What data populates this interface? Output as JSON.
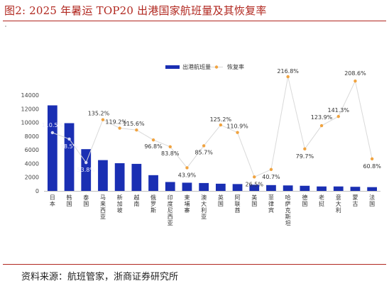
{
  "figure": {
    "title": "图2:   2025 年暑运 TOP20 出港国家航班量及其恢复率",
    "source": "资料来源：航班管家，浙商证券研究所"
  },
  "chart_data": {
    "type": "bar",
    "categories": [
      "日本",
      "韩国",
      "泰国",
      "马来西亚",
      "新加坡",
      "越南",
      "俄罗斯",
      "印度尼西亚",
      "柬埔寨",
      "澳大利亚",
      "英国",
      "阿联酋",
      "美国",
      "菲律宾",
      "哈萨克斯坦",
      "德国",
      "老挝",
      "意大利",
      "蒙古",
      "法国"
    ],
    "series": [
      {
        "name": "出港航班量",
        "kind": "bar",
        "axis": "left",
        "values": [
          12500,
          9900,
          6100,
          4500,
          4050,
          3950,
          2300,
          1300,
          1200,
          1150,
          1050,
          1000,
          900,
          850,
          800,
          750,
          650,
          650,
          600,
          550
        ]
      },
      {
        "name": "恢复率",
        "kind": "line",
        "axis": "right",
        "values": [
          110.5,
          98.5,
          53.8,
          135.2,
          119.2,
          115.6,
          96.8,
          83.8,
          43.9,
          85.7,
          125.2,
          110.9,
          26.5,
          40.7,
          216.8,
          79.7,
          123.9,
          141.3,
          208.6,
          60.8
        ],
        "labels": [
          "110.5%",
          "98.5%",
          "53.8%",
          "135.2%",
          "119.2%",
          "115.6%",
          "96.8%",
          "83.8%",
          "43.9%",
          "85.7%",
          "125.2%",
          "110.9%",
          "26.5%",
          "40.7%",
          "216.8%",
          "79.7%",
          "123.9%",
          "141.3%",
          "208.6%",
          "60.8%"
        ]
      }
    ],
    "ylim": [
      0,
      14000
    ],
    "yticks": [
      "0",
      "2000",
      "4000",
      "6000",
      "8000",
      "10000",
      "12000",
      "14000"
    ],
    "y2lim": [
      0,
      225
    ],
    "legend_position": "top-center",
    "grid": false,
    "colors": {
      "bar": "#1a2fb3",
      "line": "#d9d9d9",
      "marker": "#f0a340"
    }
  }
}
